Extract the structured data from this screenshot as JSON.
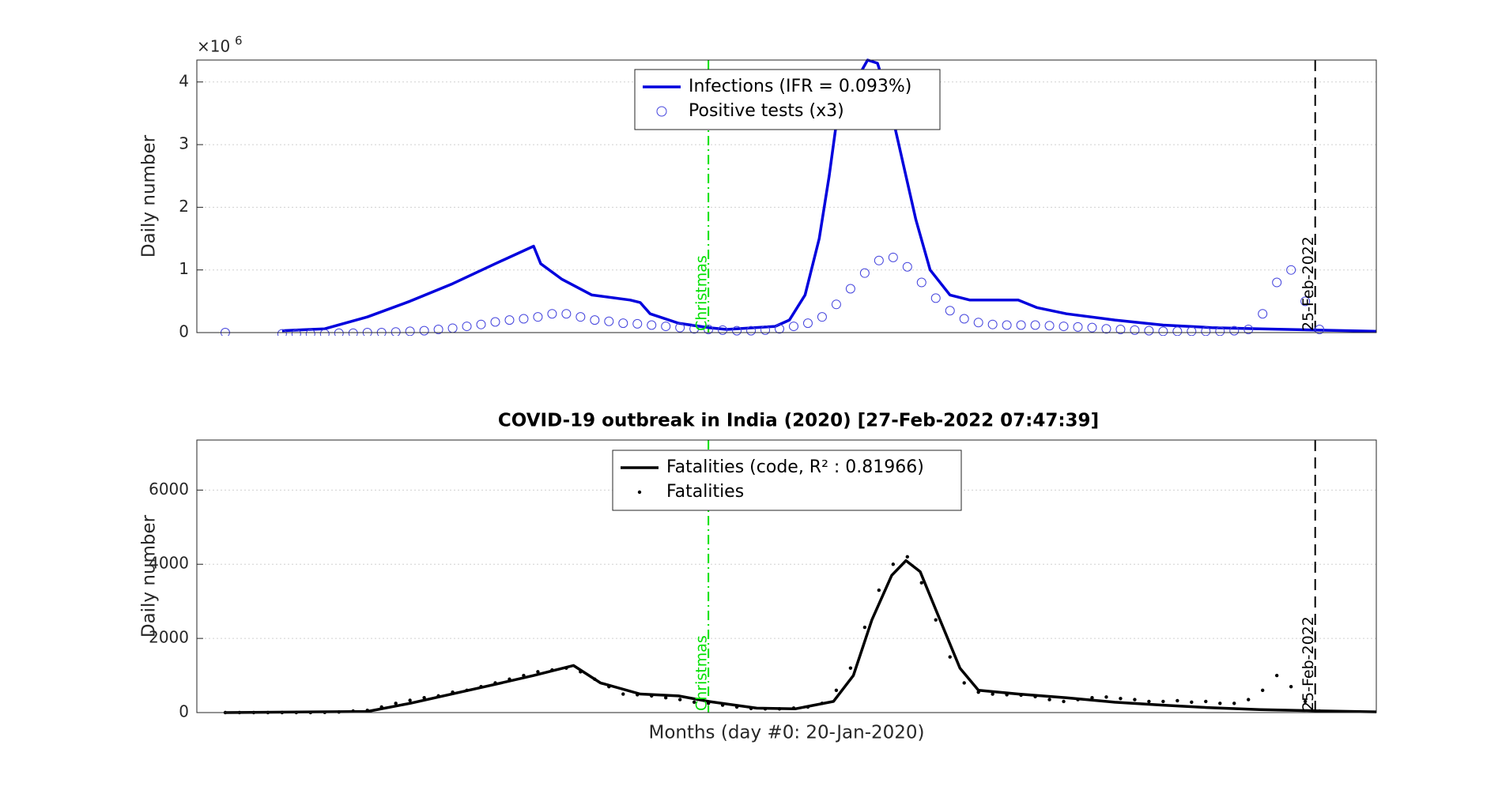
{
  "chart_data": [
    {
      "type": "line",
      "ylabel": "Daily number",
      "y_exponent_base": "×10",
      "y_exponent": "6",
      "ylim": [
        0,
        4.35
      ],
      "yticks": [
        0,
        1,
        2,
        3,
        4
      ],
      "xlim": [
        -20,
        810
      ],
      "grid": true,
      "legend": "north",
      "vlines": [
        {
          "x": 340,
          "label": "Christmas",
          "color": "#00e000",
          "style": "dashdot"
        },
        {
          "x": 767,
          "label": "25-Feb-2022",
          "color": "#000000",
          "style": "dashed"
        }
      ],
      "series": [
        {
          "name": "Infections (IFR = 0.093%)",
          "kind": "line",
          "color": "#0000dd",
          "x": [
            40,
            70,
            100,
            130,
            160,
            190,
            217,
            222,
            237,
            258,
            285,
            292,
            299,
            319,
            340,
            353,
            387,
            397,
            408,
            418,
            425,
            431,
            452,
            459,
            466,
            476,
            486,
            496,
            510,
            524,
            558,
            571,
            592,
            626,
            660,
            694,
            728,
            767,
            810
          ],
          "values": [
            0.03,
            0.06,
            0.25,
            0.5,
            0.78,
            1.1,
            1.38,
            1.1,
            0.85,
            0.6,
            0.52,
            0.48,
            0.3,
            0.15,
            0.08,
            0.05,
            0.1,
            0.2,
            0.6,
            1.5,
            2.5,
            3.5,
            4.35,
            4.3,
            3.8,
            2.8,
            1.8,
            1.0,
            0.6,
            0.52,
            0.52,
            0.4,
            0.3,
            0.2,
            0.12,
            0.08,
            0.06,
            0.04,
            0.02
          ]
        },
        {
          "name": "Positive tests (x3)",
          "kind": "circle",
          "color": "#4444dd",
          "x": [
            0,
            40,
            50,
            60,
            70,
            80,
            90,
            100,
            110,
            120,
            130,
            140,
            150,
            160,
            170,
            180,
            190,
            200,
            210,
            220,
            230,
            240,
            250,
            260,
            270,
            280,
            290,
            300,
            310,
            320,
            330,
            340,
            350,
            360,
            370,
            380,
            390,
            400,
            410,
            420,
            430,
            440,
            450,
            460,
            470,
            480,
            490,
            500,
            510,
            520,
            530,
            540,
            550,
            560,
            570,
            580,
            590,
            600,
            610,
            620,
            630,
            640,
            650,
            660,
            670,
            680,
            690,
            700,
            710,
            720,
            730,
            740,
            750,
            760,
            770
          ],
          "values": [
            0,
            -0.02,
            -0.02,
            -0.02,
            -0.02,
            -0.01,
            -0.01,
            0,
            0,
            0.01,
            0.02,
            0.03,
            0.05,
            0.07,
            0.1,
            0.13,
            0.17,
            0.2,
            0.22,
            0.25,
            0.3,
            0.3,
            0.25,
            0.2,
            0.18,
            0.15,
            0.14,
            0.12,
            0.1,
            0.08,
            0.06,
            0.05,
            0.04,
            0.03,
            0.03,
            0.04,
            0.06,
            0.1,
            0.15,
            0.25,
            0.45,
            0.7,
            0.95,
            1.15,
            1.2,
            1.05,
            0.8,
            0.55,
            0.35,
            0.22,
            0.16,
            0.13,
            0.12,
            0.12,
            0.12,
            0.11,
            0.1,
            0.09,
            0.08,
            0.06,
            0.05,
            0.04,
            0.03,
            0.02,
            0.02,
            0.02,
            0.02,
            0.02,
            0.03,
            0.05,
            0.3,
            0.8,
            1.0,
            0.5,
            0.05
          ]
        }
      ]
    },
    {
      "type": "line",
      "title": "COVID-19 outbreak in India (2020) [27-Feb-2022 07:47:39]",
      "ylabel": "Daily number",
      "xlabel": "Months (day #0: 20-Jan-2020)",
      "ylim": [
        0,
        7350
      ],
      "yticks": [
        0,
        2000,
        4000,
        6000
      ],
      "xlim": [
        -20,
        810
      ],
      "grid": true,
      "legend": "north",
      "vlines": [
        {
          "x": 340,
          "label": "Christmas",
          "color": "#00e000",
          "style": "dashdot"
        },
        {
          "x": 767,
          "label": "25-Feb-2022",
          "color": "#000000",
          "style": "dashed"
        }
      ],
      "series": [
        {
          "name": "Fatalities (code, R² : 0.81966)",
          "kind": "line",
          "color": "#000000",
          "x": [
            0,
            100,
            130,
            183,
            217,
            245,
            264,
            292,
            319,
            340,
            374,
            401,
            428,
            442,
            455,
            469,
            479,
            489,
            503,
            517,
            530,
            558,
            592,
            626,
            660,
            694,
            728,
            767,
            810
          ],
          "values": [
            0,
            30,
            250,
            700,
            1000,
            1270,
            800,
            500,
            450,
            300,
            120,
            100,
            300,
            1000,
            2500,
            3700,
            4100,
            3800,
            2500,
            1200,
            600,
            500,
            400,
            280,
            200,
            130,
            80,
            50,
            20
          ]
        },
        {
          "name": "Fatalities",
          "kind": "dot",
          "color": "#000000",
          "x": [
            0,
            10,
            20,
            30,
            40,
            50,
            60,
            70,
            80,
            90,
            100,
            110,
            120,
            130,
            140,
            150,
            160,
            170,
            180,
            190,
            200,
            210,
            220,
            230,
            240,
            250,
            260,
            270,
            280,
            290,
            300,
            310,
            320,
            330,
            340,
            350,
            360,
            370,
            380,
            390,
            400,
            410,
            420,
            430,
            440,
            450,
            460,
            470,
            480,
            490,
            500,
            510,
            520,
            530,
            540,
            550,
            560,
            570,
            580,
            590,
            600,
            610,
            620,
            630,
            640,
            650,
            660,
            670,
            680,
            690,
            700,
            710,
            720,
            730,
            740,
            750,
            760,
            770
          ],
          "values": [
            0,
            0,
            0,
            0,
            0,
            0,
            0,
            5,
            15,
            40,
            60,
            150,
            250,
            330,
            400,
            450,
            550,
            600,
            700,
            800,
            900,
            1000,
            1100,
            1150,
            1200,
            1100,
            900,
            700,
            500,
            480,
            450,
            400,
            350,
            280,
            250,
            200,
            150,
            110,
            100,
            100,
            120,
            150,
            250,
            600,
            1200,
            2300,
            3300,
            4000,
            4200,
            3500,
            2500,
            1500,
            800,
            550,
            500,
            480,
            470,
            430,
            350,
            300,
            350,
            400,
            420,
            380,
            350,
            300,
            300,
            320,
            280,
            300,
            250,
            250,
            350,
            600,
            1000,
            700,
            300,
            40
          ]
        }
      ]
    }
  ]
}
